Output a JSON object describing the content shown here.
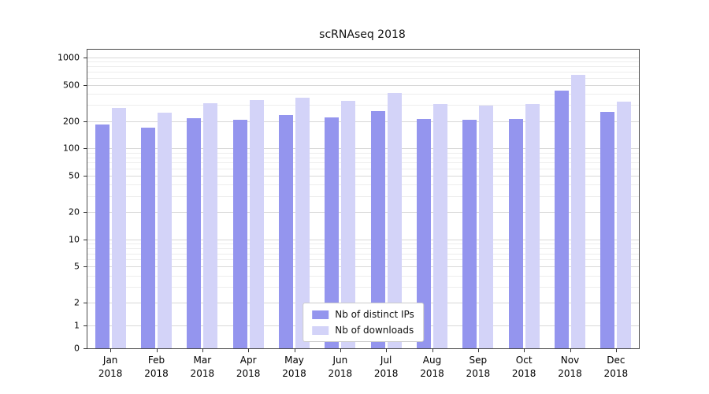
{
  "title": "scRNAseq 2018",
  "chart_data": {
    "type": "bar",
    "title": "scRNAseq 2018",
    "xlabel": "",
    "ylabel": "",
    "year": "2018",
    "yscale": "symlog",
    "grid": true,
    "legend_position": "lower center",
    "categories": [
      "Jan",
      "Feb",
      "Mar",
      "Apr",
      "May",
      "Jun",
      "Jul",
      "Aug",
      "Sep",
      "Oct",
      "Nov",
      "Dec"
    ],
    "series": [
      {
        "name": "Nb of distinct IPs",
        "color": "#9495ee",
        "values": [
          185,
          170,
          215,
          207,
          235,
          220,
          260,
          212,
          207,
          213,
          430,
          250
        ]
      },
      {
        "name": "Nb of downloads",
        "color": "#d3d3f8",
        "values": [
          280,
          248,
          315,
          340,
          360,
          335,
          410,
          310,
          295,
          310,
          650,
          330
        ]
      }
    ],
    "yticks": [
      0,
      1,
      2,
      5,
      10,
      20,
      50,
      100,
      200,
      500,
      1000
    ],
    "minor_gridlines": [
      3,
      4,
      6,
      7,
      8,
      9,
      30,
      40,
      60,
      70,
      80,
      90,
      300,
      400,
      600,
      700,
      800,
      900
    ],
    "ylim": [
      0,
      1150
    ]
  },
  "colors": {
    "grid_major": "#d8d8d8",
    "grid_minor": "#ededed",
    "axis": "#4a4a4a",
    "background": "#ffffff"
  }
}
